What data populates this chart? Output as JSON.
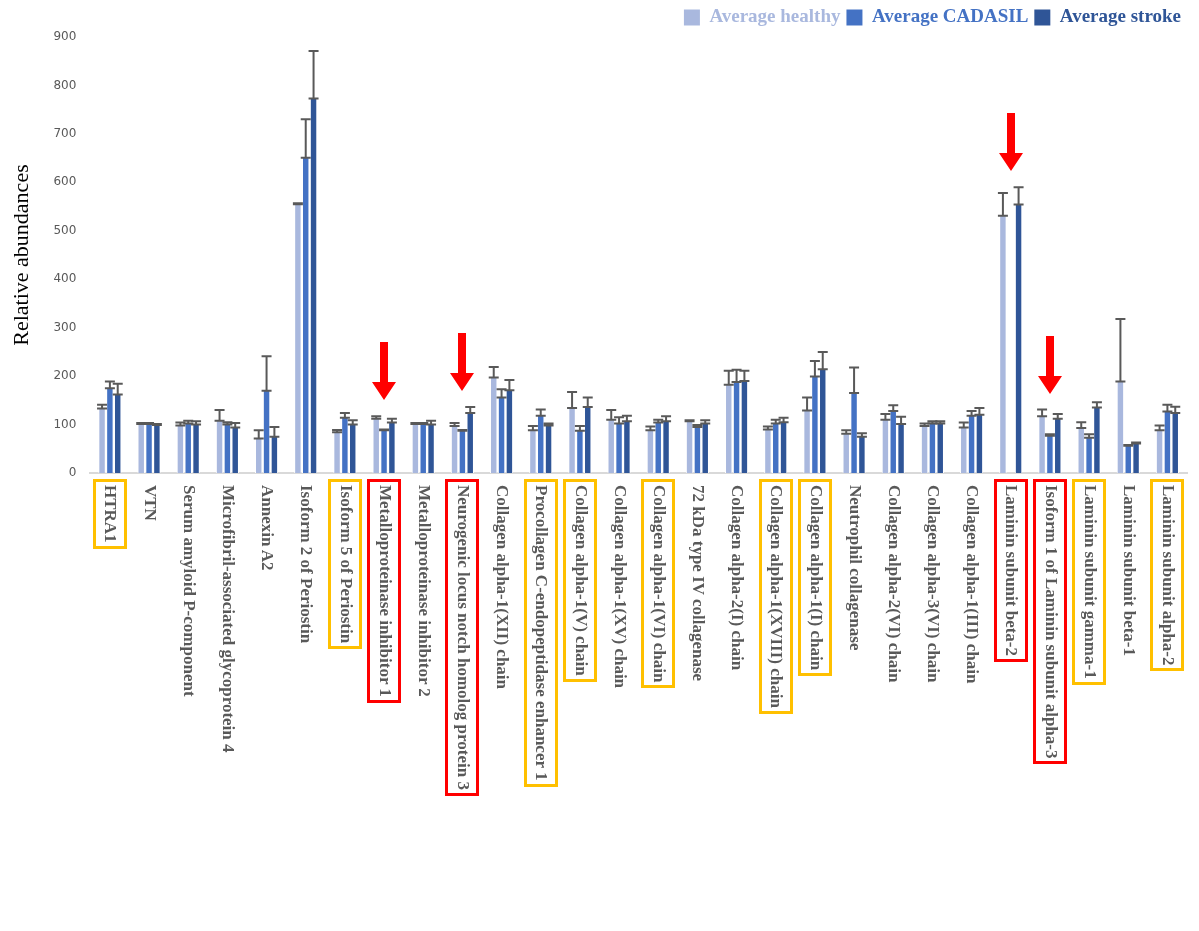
{
  "chart_data": {
    "type": "bar",
    "ylabel": "Relative abundances",
    "categories": [
      "HTRA1",
      "VTN",
      "Serum amyloid P-component",
      "Microfibril-associated glycoprotein 4",
      "Annexin A2",
      "Isoform 2 of Periostin",
      "Isoform 5 of Periostin",
      "Metalloproteinase inhibitor 1",
      "Metalloproteinase inhibitor 2",
      "Neurogenic locus notch homolog protein 3",
      "Collagen alpha-1(XII) chain",
      "Procollagen C-endopeptidase enhancer 1",
      "Collagen alpha-1(V) chain",
      "Collagen alpha-1(XV) chain",
      "Collagen alpha-1(VI) chain",
      "72 kDa type IV collagenase",
      "Collagen alpha-2(I) chain",
      "Collagen alpha-1(XVIII) chain",
      "Collagen alpha-1(I) chain",
      "Neutrophil collagenase",
      "Collagen alpha-2(VI) chain",
      "Collagen alpha-3(VI) chain",
      "Collagen alpha-1(III) chain",
      "Laminin subunit beta-2",
      "Isoform 1 of Laminin subunit alpha-3",
      "Laminin subunit gamma-1",
      "Laminin subunit beta-1",
      "Laminin subunit alpha-2"
    ],
    "series": [
      {
        "name": "Average healthy",
        "color": "#a9b8de",
        "values": [
          133,
          101,
          98,
          108,
          71,
          555,
          84,
          112,
          101,
          97,
          197,
          88,
          134,
          110,
          88,
          107,
          182,
          90,
          129,
          81,
          110,
          97,
          94,
          531,
          117,
          93,
          189,
          88
        ],
        "errors": [
          [
            133,
            141
          ],
          [
            101,
            103
          ],
          [
            98,
            104
          ],
          [
            108,
            130
          ],
          [
            71,
            88
          ],
          [
            555,
            557
          ],
          [
            84,
            89
          ],
          [
            112,
            117
          ],
          [
            101,
            103
          ],
          [
            97,
            103
          ],
          [
            197,
            219
          ],
          [
            88,
            97
          ],
          [
            134,
            167
          ],
          [
            110,
            130
          ],
          [
            88,
            96
          ],
          [
            107,
            109
          ],
          [
            182,
            211
          ],
          [
            90,
            96
          ],
          [
            129,
            156
          ],
          [
            81,
            88
          ],
          [
            110,
            122
          ],
          [
            97,
            102
          ],
          [
            94,
            104
          ],
          [
            531,
            578
          ],
          [
            117,
            131
          ],
          [
            93,
            105
          ],
          [
            189,
            318
          ],
          [
            88,
            98
          ]
        ]
      },
      {
        "name": "Average CADASIL",
        "color": "#4472c4",
        "values": [
          175,
          101,
          102,
          100,
          170,
          651,
          114,
          88,
          101,
          87,
          156,
          118,
          87,
          102,
          104,
          95,
          188,
          102,
          199,
          165,
          128,
          102,
          118,
          null,
          77,
          73,
          56,
          127
        ],
        "errors": [
          [
            175,
            189
          ],
          [
            101,
            103
          ],
          [
            102,
            108
          ],
          [
            100,
            105
          ],
          [
            170,
            241
          ],
          [
            651,
            730
          ],
          [
            114,
            124
          ],
          [
            88,
            90
          ],
          [
            101,
            103
          ],
          [
            87,
            89
          ],
          [
            156,
            173
          ],
          [
            118,
            131
          ],
          [
            87,
            97
          ],
          [
            102,
            115
          ],
          [
            104,
            110
          ],
          [
            95,
            99
          ],
          [
            188,
            213
          ],
          [
            102,
            110
          ],
          [
            199,
            231
          ],
          [
            165,
            218
          ],
          [
            128,
            140
          ],
          [
            102,
            107
          ],
          [
            118,
            128
          ],
          null,
          [
            77,
            80
          ],
          [
            73,
            80
          ],
          [
            56,
            58
          ],
          [
            127,
            141
          ]
        ]
      },
      {
        "name": "Average stroke",
        "color": "#2f5597",
        "values": [
          162,
          99,
          100,
          94,
          75,
          773,
          100,
          104,
          100,
          124,
          171,
          98,
          136,
          107,
          107,
          102,
          190,
          105,
          214,
          75,
          101,
          102,
          120,
          554,
          112,
          135,
          61,
          124
        ],
        "errors": [
          [
            162,
            184
          ],
          [
            99,
            101
          ],
          [
            100,
            107
          ],
          [
            94,
            103
          ],
          [
            75,
            95
          ],
          [
            773,
            871
          ],
          [
            100,
            109
          ],
          [
            104,
            112
          ],
          [
            100,
            108
          ],
          [
            124,
            136
          ],
          [
            171,
            192
          ],
          [
            98,
            102
          ],
          [
            136,
            156
          ],
          [
            107,
            118
          ],
          [
            107,
            117
          ],
          [
            102,
            109
          ],
          [
            190,
            211
          ],
          [
            105,
            114
          ],
          [
            214,
            250
          ],
          [
            75,
            82
          ],
          [
            101,
            116
          ],
          [
            102,
            107
          ],
          [
            120,
            134
          ],
          [
            554,
            590
          ],
          [
            112,
            122
          ],
          [
            135,
            146
          ],
          [
            61,
            63
          ],
          [
            124,
            137
          ]
        ]
      }
    ],
    "ylim": [
      0,
      900
    ],
    "yticks": [
      0,
      100,
      200,
      300,
      400,
      500,
      600,
      700,
      800,
      900
    ],
    "grid": false,
    "legend": "top right"
  }
}
